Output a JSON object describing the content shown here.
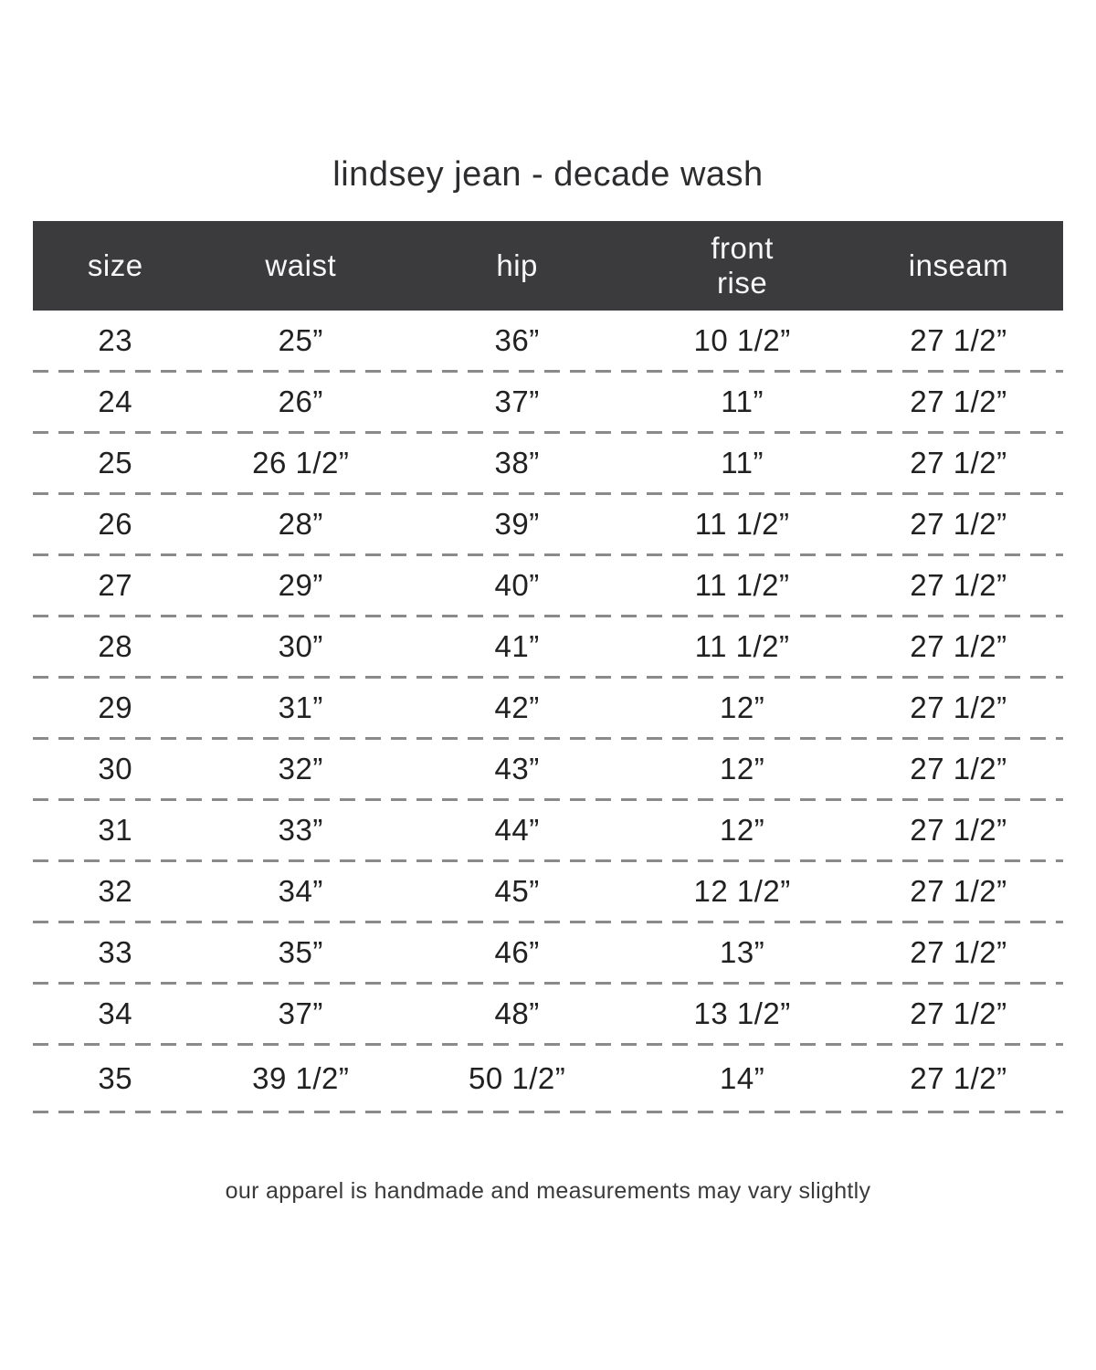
{
  "title": "lindsey jean - decade wash",
  "footnote": "our apparel is handmade and measurements may vary slightly",
  "colors": {
    "header_bg": "#3b3b3d",
    "header_text": "#f7f7f7",
    "body_text": "#212121",
    "dash_line": "#8a8a8a",
    "background": "#ffffff"
  },
  "chart_data": {
    "type": "table",
    "title": "lindsey jean - decade wash",
    "columns": [
      "size",
      "waist",
      "hip",
      "front\nrise",
      "inseam"
    ],
    "rows": [
      [
        "23",
        "25”",
        "36”",
        "10 1/2”",
        "27 1/2”"
      ],
      [
        "24",
        "26”",
        "37”",
        "11”",
        "27 1/2”"
      ],
      [
        "25",
        "26 1/2”",
        "38”",
        "11”",
        "27 1/2”"
      ],
      [
        "26",
        "28”",
        "39”",
        "11 1/2”",
        "27 1/2”"
      ],
      [
        "27",
        "29”",
        "40”",
        "11 1/2”",
        "27 1/2”"
      ],
      [
        "28",
        "30”",
        "41”",
        "11 1/2”",
        "27 1/2”"
      ],
      [
        "29",
        "31”",
        "42”",
        "12”",
        "27 1/2”"
      ],
      [
        "30",
        "32”",
        "43”",
        "12”",
        "27 1/2”"
      ],
      [
        "31",
        "33”",
        "44”",
        "12”",
        "27 1/2”"
      ],
      [
        "32",
        "34”",
        "45”",
        "12 1/2”",
        "27 1/2”"
      ],
      [
        "33",
        "35”",
        "46”",
        "13”",
        "27 1/2”"
      ],
      [
        "34",
        "37”",
        "48”",
        "13 1/2”",
        "27 1/2”"
      ],
      [
        "35",
        "39 1/2”",
        "50 1/2”",
        "14”",
        "27 1/2”"
      ]
    ],
    "layout": {
      "legend": false,
      "grid": "dashed-horizontal-row-dividers"
    }
  }
}
